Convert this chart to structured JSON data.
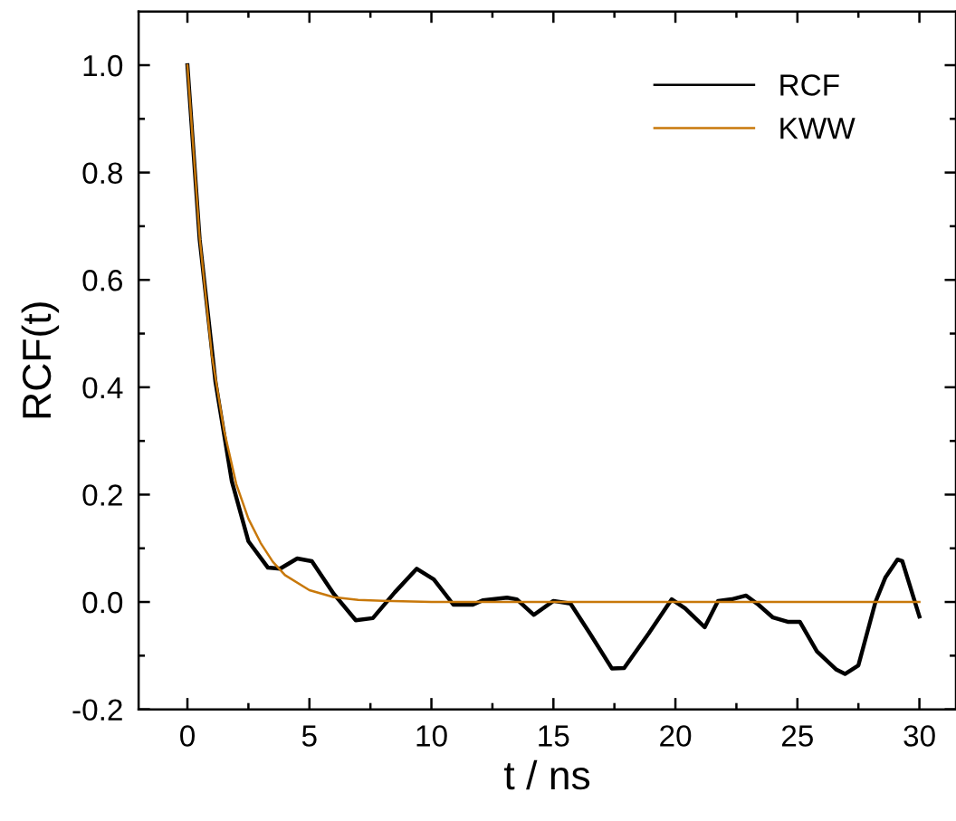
{
  "chart_data": {
    "type": "line",
    "xlabel": "t / ns",
    "ylabel": "RCF(t)",
    "xlim": [
      -2,
      31.5
    ],
    "ylim": [
      -0.2,
      1.1
    ],
    "xticks": [
      0,
      {
        "value": 2.5,
        "label": null
      },
      5,
      {
        "value": 7.5,
        "label": null
      },
      10,
      {
        "value": 12.5,
        "label": null
      },
      15,
      {
        "value": 17.5,
        "label": null
      },
      20,
      {
        "value": 22.5,
        "label": null
      },
      25,
      {
        "value": 27.5,
        "label": null
      },
      30
    ],
    "yticks": [
      {
        "value": -0.2,
        "label": "-0.2"
      },
      {
        "value": -0.1,
        "label": null
      },
      {
        "value": 0.0,
        "label": "0.0"
      },
      {
        "value": 0.1,
        "label": null
      },
      {
        "value": 0.2,
        "label": "0.2"
      },
      {
        "value": 0.3,
        "label": null
      },
      {
        "value": 0.4,
        "label": "0.4"
      },
      {
        "value": 0.5,
        "label": null
      },
      {
        "value": 0.6,
        "label": "0.6"
      },
      {
        "value": 0.7,
        "label": null
      },
      {
        "value": 0.8,
        "label": "0.8"
      },
      {
        "value": 0.9,
        "label": null
      },
      {
        "value": 1.0,
        "label": "1.0"
      }
    ],
    "grid": false,
    "legend": "top right",
    "marker": "none",
    "line_style": "solid",
    "series": [
      {
        "name": "RCF",
        "color": "#000000",
        "x": [
          0,
          0.5,
          1.15,
          1.82,
          2.5,
          3.3,
          3.8,
          4.5,
          5.1,
          6.0,
          6.9,
          7.6,
          8.5,
          9.4,
          10.1,
          10.9,
          11.7,
          12.1,
          13.1,
          13.5,
          14.2,
          15.0,
          15.7,
          16.5,
          17.4,
          17.9,
          18.9,
          19.85,
          20.4,
          21.2,
          21.75,
          22.3,
          22.9,
          23.4,
          24.0,
          24.6,
          25.1,
          25.8,
          26.6,
          26.95,
          27.5,
          28.2,
          28.6,
          29.1,
          29.3,
          30.0
        ],
        "values": [
          1.0,
          0.676,
          0.41,
          0.225,
          0.113,
          0.064,
          0.062,
          0.081,
          0.076,
          0.015,
          -0.034,
          -0.03,
          0.018,
          0.062,
          0.042,
          -0.005,
          -0.005,
          0.003,
          0.008,
          0.005,
          -0.024,
          0.002,
          -0.003,
          -0.059,
          -0.124,
          -0.123,
          -0.059,
          0.005,
          -0.012,
          -0.047,
          0.002,
          0.005,
          0.012,
          -0.005,
          -0.029,
          -0.037,
          -0.037,
          -0.092,
          -0.126,
          -0.134,
          -0.118,
          0.0,
          0.045,
          0.079,
          0.076,
          -0.027
        ]
      },
      {
        "name": "KWW",
        "color": "#c8780a",
        "x": [
          0,
          0.5,
          1,
          1.5,
          2,
          2.5,
          3,
          3.5,
          4,
          5,
          6,
          7,
          8,
          10,
          12,
          30
        ],
        "values": [
          1.0,
          0.68,
          0.46,
          0.32,
          0.22,
          0.155,
          0.11,
          0.075,
          0.05,
          0.022,
          0.009,
          0.004,
          0.002,
          0,
          0,
          0
        ]
      }
    ]
  }
}
